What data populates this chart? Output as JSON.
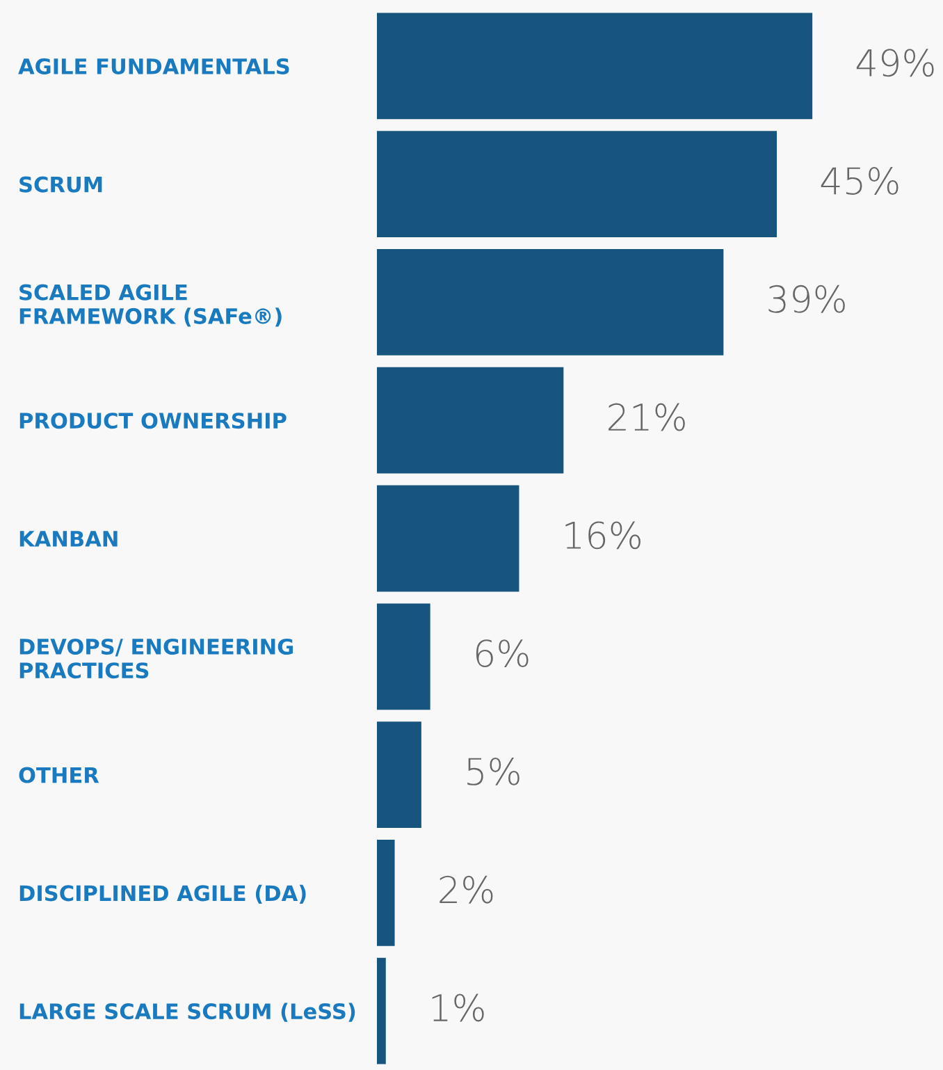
{
  "chart_data": {
    "type": "bar",
    "orientation": "horizontal",
    "categories": [
      "AGILE FUNDAMENTALS",
      "SCRUM",
      "SCALED AGILE\nFRAMEWORK (SAFe®)",
      "PRODUCT OWNERSHIP",
      "KANBAN",
      "DEVOPS/ ENGINEERING\nPRACTICES",
      "OTHER",
      "DISCIPLINED AGILE (DA)",
      "LARGE SCALE SCRUM (LeSS)"
    ],
    "values": [
      49,
      45,
      39,
      21,
      16,
      6,
      5,
      2,
      1
    ],
    "value_labels": [
      "49%",
      "45%",
      "39%",
      "21%",
      "16%",
      "6%",
      "5%",
      "2%",
      "1%"
    ],
    "color": "#17557f",
    "grid": false,
    "legend": false
  }
}
